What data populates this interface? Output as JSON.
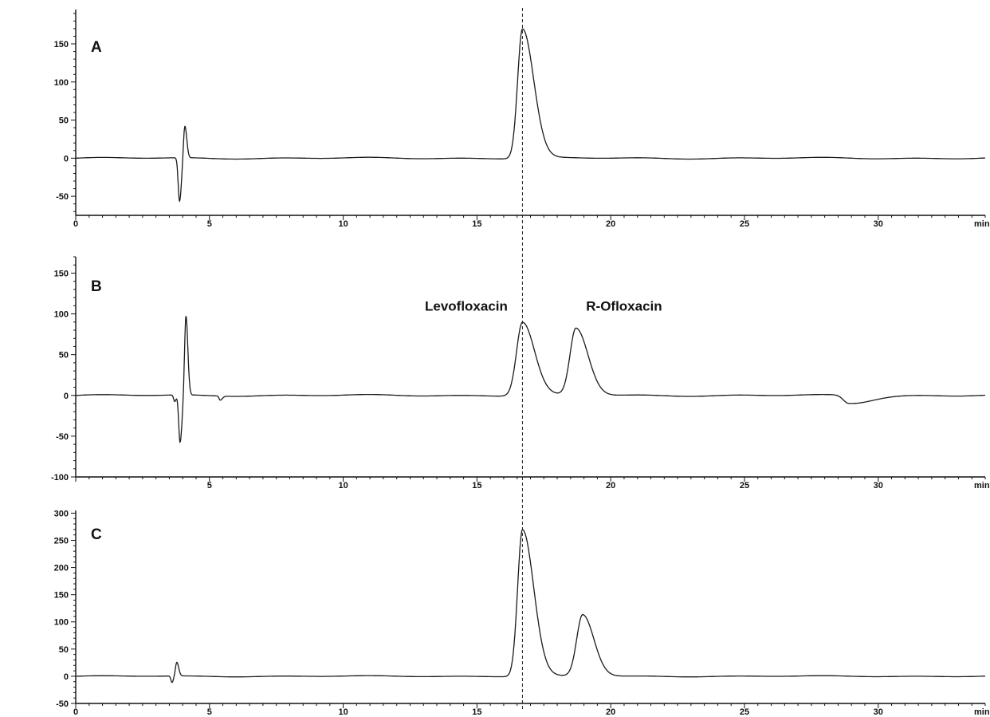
{
  "chart_data": [
    {
      "type": "line",
      "panel_label": "A",
      "xlabel": "min",
      "xlim": [
        0,
        34
      ],
      "ylim": [
        -75,
        195
      ],
      "x_ticks": [
        0,
        5,
        10,
        15,
        20,
        25,
        30
      ],
      "x_tick_labels": [
        "0",
        "5",
        "10",
        "15",
        "20",
        "25",
        "30"
      ],
      "y_ticks": [
        -50,
        0,
        50,
        100,
        150
      ],
      "y_tick_labels": [
        "-50",
        "0",
        "50",
        "100",
        "150"
      ],
      "baseline": 0,
      "peaks": [
        {
          "rt": 3.88,
          "height": -57,
          "width_left": 0.05,
          "width_right": 0.07
        },
        {
          "rt": 4.08,
          "height": 42,
          "width_left": 0.05,
          "width_right": 0.07
        },
        {
          "rt": 16.7,
          "height": 170,
          "width_left": 0.18,
          "width_right": 0.42
        }
      ],
      "annotations": []
    },
    {
      "type": "line",
      "panel_label": "B",
      "xlabel": "min",
      "xlim": [
        0,
        34
      ],
      "ylim": [
        -100,
        170
      ],
      "x_ticks": [
        5,
        10,
        15,
        20,
        25,
        30
      ],
      "x_tick_labels": [
        "5",
        "10",
        "15",
        "20",
        "25",
        "30"
      ],
      "y_ticks": [
        -100,
        -50,
        0,
        50,
        100,
        150
      ],
      "y_tick_labels": [
        "-100",
        "-50",
        "0",
        "50",
        "100",
        "150"
      ],
      "baseline": 0,
      "peaks": [
        {
          "rt": 3.7,
          "height": -8,
          "width_left": 0.04,
          "width_right": 0.05
        },
        {
          "rt": 3.9,
          "height": -58,
          "width_left": 0.05,
          "width_right": 0.07
        },
        {
          "rt": 4.12,
          "height": 97,
          "width_left": 0.05,
          "width_right": 0.07
        },
        {
          "rt": 5.4,
          "height": -5,
          "width_left": 0.04,
          "width_right": 0.08
        },
        {
          "rt": 16.7,
          "height": 90,
          "width_left": 0.22,
          "width_right": 0.45
        },
        {
          "rt": 18.7,
          "height": 82,
          "width_left": 0.22,
          "width_right": 0.45
        },
        {
          "rt": 28.9,
          "height": -10,
          "width_left": 0.2,
          "width_right": 0.8
        }
      ],
      "annotations": [
        {
          "text": "Levofloxacin",
          "x": 14.6,
          "y": 104
        },
        {
          "text": "R-Ofloxacin",
          "x": 20.5,
          "y": 104
        }
      ]
    },
    {
      "type": "line",
      "panel_label": "C",
      "xlabel": "min",
      "xlim": [
        0,
        34
      ],
      "ylim": [
        -50,
        305
      ],
      "x_ticks": [
        0,
        5,
        10,
        15,
        20,
        25,
        30
      ],
      "x_tick_labels": [
        "0",
        "5",
        "10",
        "15",
        "20",
        "25",
        "30"
      ],
      "y_ticks": [
        -50,
        0,
        50,
        100,
        150,
        200,
        250,
        300
      ],
      "y_tick_labels": [
        "-50",
        "0",
        "50",
        "100",
        "150",
        "200",
        "250",
        "300"
      ],
      "baseline": 0,
      "peaks": [
        {
          "rt": 3.6,
          "height": -12,
          "width_left": 0.04,
          "width_right": 0.05
        },
        {
          "rt": 3.78,
          "height": 25,
          "width_left": 0.05,
          "width_right": 0.07
        },
        {
          "rt": 16.7,
          "height": 270,
          "width_left": 0.18,
          "width_right": 0.42
        },
        {
          "rt": 18.95,
          "height": 113,
          "width_left": 0.22,
          "width_right": 0.42
        }
      ],
      "annotations": []
    }
  ],
  "colors": {
    "trace": "#1a1a1a",
    "axis": "#111111",
    "marker": "#222222"
  },
  "marker_line_x": 16.7
}
